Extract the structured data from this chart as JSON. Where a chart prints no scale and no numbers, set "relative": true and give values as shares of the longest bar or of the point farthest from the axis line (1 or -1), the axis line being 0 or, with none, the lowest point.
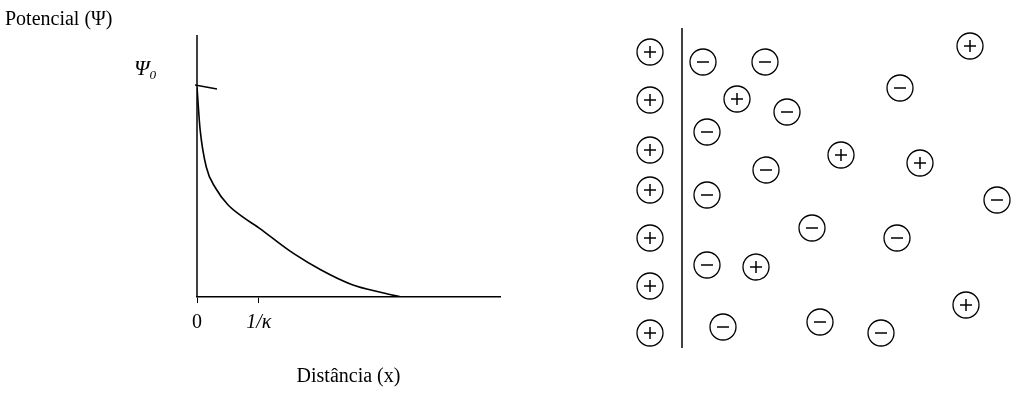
{
  "chart_data": {
    "type": "line",
    "relative": true,
    "xlabel": "Distância (x)",
    "ylabel": "Potencial (Ψ)",
    "x": [
      0,
      0.05,
      0.15,
      0.3,
      0.5,
      0.75,
      1,
      1.5,
      2,
      2.5,
      3,
      3.3
    ],
    "series": [
      {
        "color": "#000000",
        "values": [
          1,
          0.8,
          0.62,
          0.52,
          0.44,
          0.38,
          0.33,
          0.22,
          0.13,
          0.06,
          0.02,
          0
        ]
      }
    ],
    "xlim": [
      0,
      4.9
    ],
    "xticks": [
      0,
      {
        "value": 1,
        "label": "1/κ"
      }
    ],
    "annotations": [
      {
        "text": "Ψ₀",
        "x": 0,
        "y": 1
      }
    ],
    "grid": false,
    "legend": false
  }
}
